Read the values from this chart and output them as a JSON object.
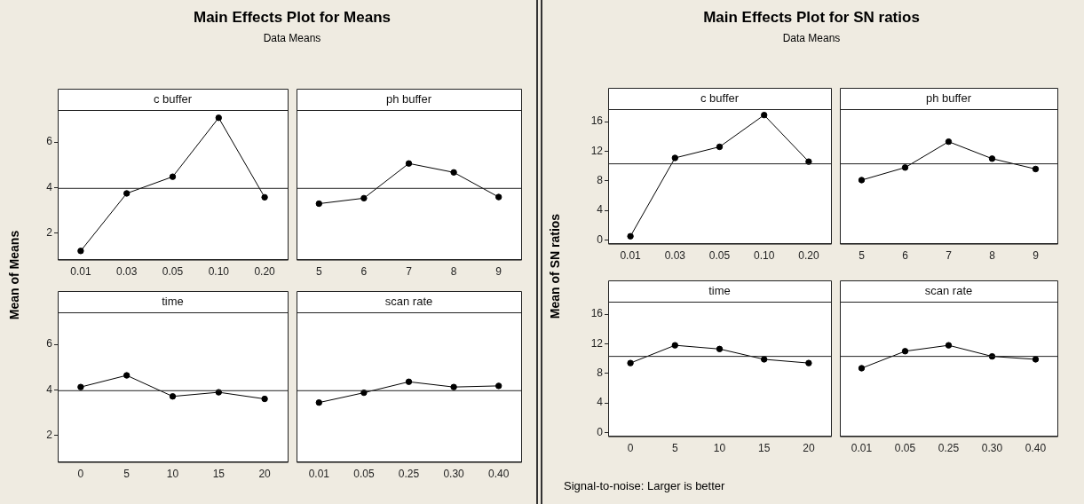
{
  "chart_data": [
    {
      "type": "other",
      "title": "Main Effects Plot for Means",
      "subtitle": "Data Means",
      "ylabel": "Mean of Means"
    },
    {
      "type": "line",
      "title": "c buffer",
      "categories": [
        "0.01",
        "0.03",
        "0.05",
        "0.10",
        "0.20"
      ],
      "values": [
        1.23,
        3.75,
        4.48,
        7.06,
        3.58
      ],
      "color": "#000000",
      "marker": "circle",
      "ylim": [
        0.85,
        7.4
      ],
      "yticks": [
        2,
        4,
        6
      ],
      "ref_lines": [
        {
          "axis": "y",
          "value": 3.97
        }
      ]
    },
    {
      "type": "line",
      "title": "ph buffer",
      "categories": [
        "5",
        "6",
        "7",
        "8",
        "9"
      ],
      "values": [
        3.3,
        3.54,
        5.06,
        4.67,
        3.59
      ],
      "color": "#000000",
      "marker": "circle",
      "ylim": [
        0.85,
        7.4
      ],
      "yticks": [
        2,
        4,
        6
      ],
      "tick_labels": "x",
      "ref_lines": [
        {
          "axis": "y",
          "value": 3.97
        }
      ]
    },
    {
      "type": "line",
      "title": "time",
      "categories": [
        "0",
        "5",
        "10",
        "15",
        "20"
      ],
      "values": [
        4.13,
        4.64,
        3.72,
        3.9,
        3.61
      ],
      "color": "#000000",
      "marker": "circle",
      "ylim": [
        0.85,
        7.4
      ],
      "yticks": [
        2,
        4,
        6
      ],
      "ref_lines": [
        {
          "axis": "y",
          "value": 3.97
        }
      ]
    },
    {
      "type": "line",
      "title": "scan rate",
      "categories": [
        "0.01",
        "0.05",
        "0.25",
        "0.30",
        "0.40"
      ],
      "values": [
        3.45,
        3.88,
        4.36,
        4.13,
        4.18
      ],
      "color": "#000000",
      "marker": "circle",
      "ylim": [
        0.85,
        7.4
      ],
      "yticks": [
        2,
        4,
        6
      ],
      "tick_labels": "x",
      "ref_lines": [
        {
          "axis": "y",
          "value": 3.97
        }
      ]
    },
    {
      "type": "other",
      "title": "Main Effects Plot for SN ratios",
      "subtitle": "Data Means",
      "ylabel": "Mean of SN ratios",
      "annotations": [
        "Signal-to-noise: Larger is better"
      ]
    },
    {
      "type": "line",
      "title": "c buffer",
      "categories": [
        "0.01",
        "0.03",
        "0.05",
        "0.10",
        "0.20"
      ],
      "values": [
        0.5,
        11.1,
        12.6,
        16.9,
        10.6
      ],
      "color": "#000000",
      "marker": "circle",
      "ylim": [
        -0.5,
        17.7
      ],
      "yticks": [
        0,
        4,
        8,
        12,
        16
      ],
      "ref_lines": [
        {
          "axis": "y",
          "value": 10.3
        }
      ]
    },
    {
      "type": "line",
      "title": "ph buffer",
      "categories": [
        "5",
        "6",
        "7",
        "8",
        "9"
      ],
      "values": [
        8.1,
        9.8,
        13.3,
        11.0,
        9.6
      ],
      "color": "#000000",
      "marker": "circle",
      "ylim": [
        -0.5,
        17.7
      ],
      "yticks": [
        0,
        4,
        8,
        12,
        16
      ],
      "tick_labels": "x",
      "ref_lines": [
        {
          "axis": "y",
          "value": 10.3
        }
      ]
    },
    {
      "type": "line",
      "title": "time",
      "categories": [
        "0",
        "5",
        "10",
        "15",
        "20"
      ],
      "values": [
        9.4,
        11.8,
        11.3,
        9.9,
        9.4
      ],
      "color": "#000000",
      "marker": "circle",
      "ylim": [
        -0.5,
        17.7
      ],
      "yticks": [
        0,
        4,
        8,
        12,
        16
      ],
      "ref_lines": [
        {
          "axis": "y",
          "value": 10.3
        }
      ]
    },
    {
      "type": "line",
      "title": "scan rate",
      "categories": [
        "0.01",
        "0.05",
        "0.25",
        "0.30",
        "0.40"
      ],
      "values": [
        8.7,
        11.0,
        11.8,
        10.3,
        9.9
      ],
      "color": "#000000",
      "marker": "circle",
      "ylim": [
        -0.5,
        17.7
      ],
      "yticks": [
        0,
        4,
        8,
        12,
        16
      ],
      "tick_labels": "x",
      "ref_lines": [
        {
          "axis": "y",
          "value": 10.3
        }
      ]
    }
  ]
}
